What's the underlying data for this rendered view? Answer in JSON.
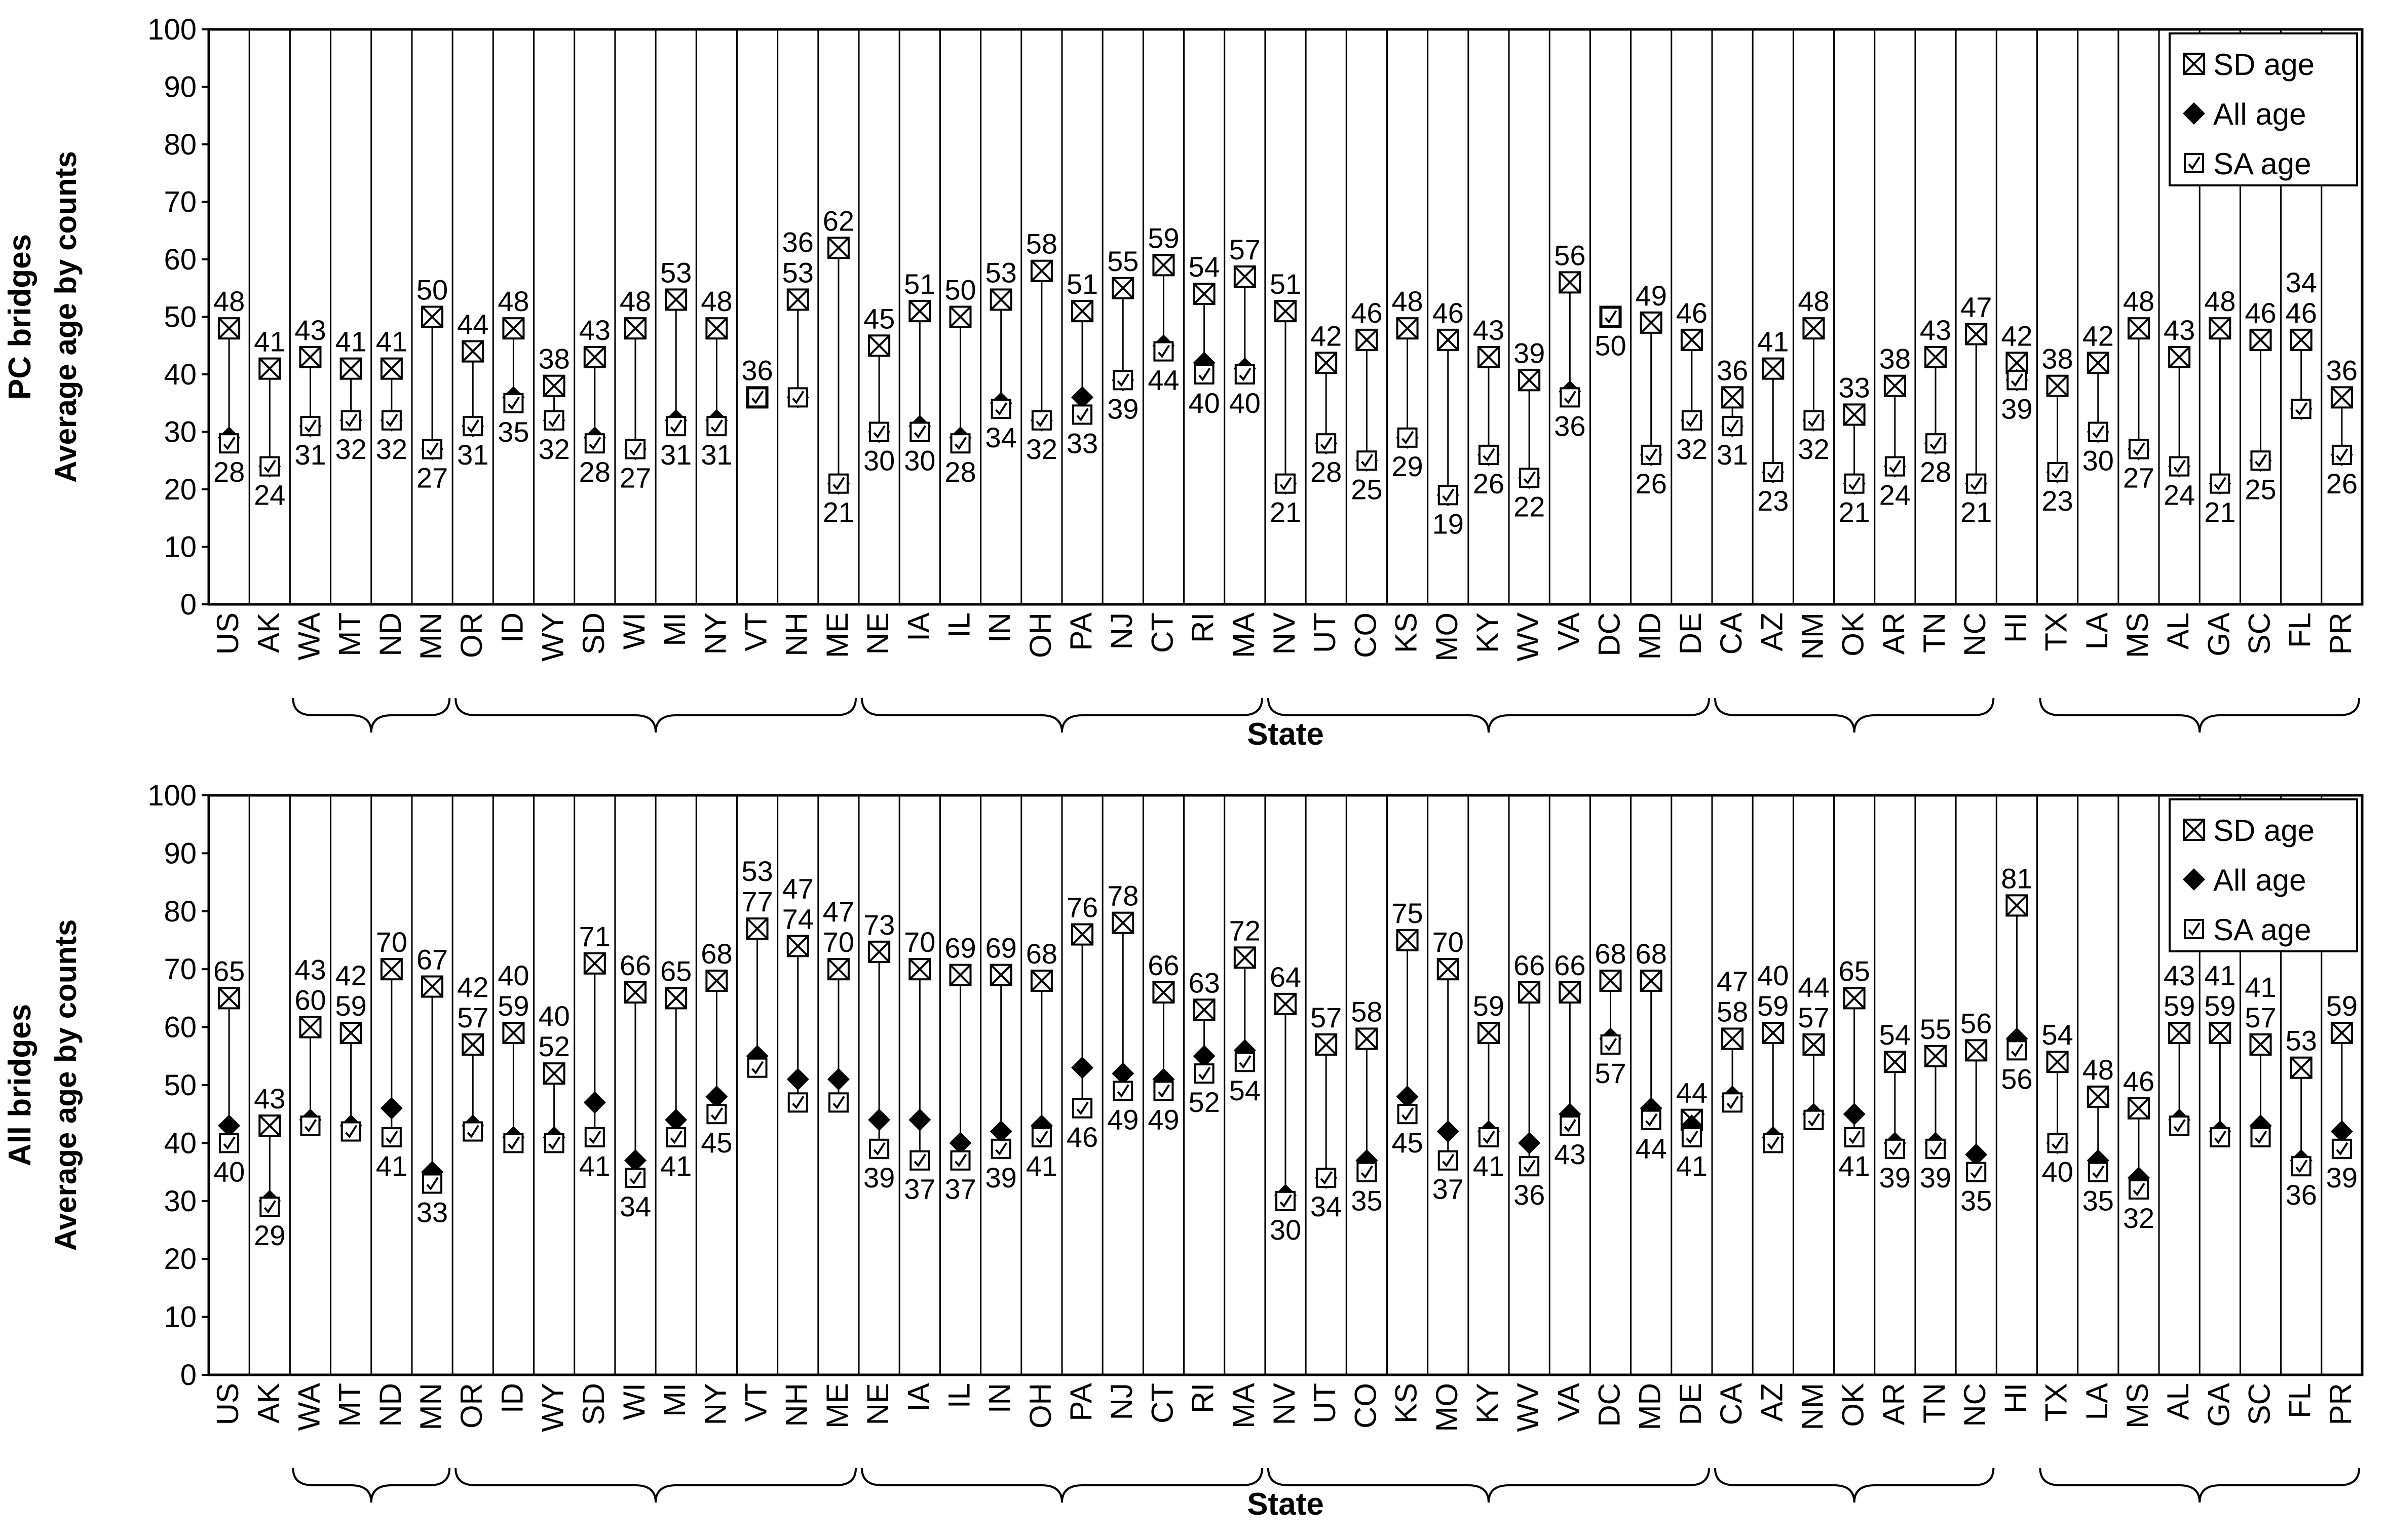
{
  "legend": {
    "sd_label": "SD age",
    "all_label": "All age",
    "sa_label": "SA age"
  },
  "chart_data": [
    {
      "type": "scatter",
      "title": "",
      "panel_label": "PC bridges",
      "ylabel": "Average age by counts",
      "xlabel": "State",
      "ylim": [
        0,
        100
      ],
      "yticks": [
        0,
        10,
        20,
        30,
        40,
        50,
        60,
        70,
        80,
        90,
        100
      ],
      "legend_position": "top-right",
      "categories": [
        "US",
        "AK",
        "WA",
        "MT",
        "ND",
        "MN",
        "OR",
        "ID",
        "WY",
        "SD",
        "WI",
        "MI",
        "NY",
        "VT",
        "NH",
        "ME",
        "NE",
        "IA",
        "IL",
        "IN",
        "OH",
        "PA",
        "NJ",
        "CT",
        "RI",
        "MA",
        "NV",
        "UT",
        "CO",
        "KS",
        "MO",
        "KY",
        "WV",
        "VA",
        "DC",
        "MD",
        "DE",
        "CA",
        "AZ",
        "NM",
        "OK",
        "AR",
        "TN",
        "NC",
        "HI",
        "TX",
        "LA",
        "MS",
        "AL",
        "GA",
        "SC",
        "FL",
        "PR"
      ],
      "series": [
        {
          "name": "SD age",
          "values": [
            48,
            41,
            43,
            41,
            41,
            50,
            44,
            48,
            38,
            43,
            48,
            53,
            48,
            36,
            53,
            62,
            45,
            51,
            50,
            53,
            58,
            51,
            55,
            59,
            54,
            57,
            51,
            42,
            46,
            48,
            46,
            43,
            39,
            56,
            50,
            49,
            46,
            36,
            41,
            48,
            33,
            38,
            43,
            47,
            42,
            38,
            42,
            48,
            43,
            48,
            46,
            46,
            36
          ]
        },
        {
          "name": "All age",
          "values": [
            29,
            24,
            31,
            32,
            32,
            27,
            31,
            36,
            32,
            29,
            27,
            32,
            32,
            36,
            36,
            21,
            30,
            31,
            29,
            35,
            32,
            36,
            39,
            45,
            42,
            41,
            21,
            28,
            25,
            29,
            19,
            26,
            22,
            37,
            50,
            26,
            32,
            31,
            23,
            32,
            21,
            24,
            28,
            21,
            39,
            23,
            30,
            27,
            24,
            21,
            25,
            34,
            26
          ]
        },
        {
          "name": "SA age",
          "values": [
            28,
            24,
            31,
            32,
            32,
            27,
            31,
            35,
            32,
            28,
            27,
            31,
            31,
            36,
            36,
            21,
            30,
            30,
            28,
            34,
            32,
            33,
            39,
            44,
            40,
            40,
            21,
            28,
            25,
            29,
            19,
            26,
            22,
            36,
            50,
            26,
            32,
            31,
            23,
            32,
            21,
            24,
            28,
            21,
            39,
            23,
            30,
            27,
            24,
            21,
            25,
            34,
            26
          ]
        }
      ],
      "point_labels": {
        "upper": [
          48,
          41,
          43,
          41,
          41,
          50,
          44,
          48,
          38,
          43,
          48,
          53,
          48,
          "",
          53,
          62,
          45,
          51,
          50,
          53,
          58,
          51,
          55,
          59,
          54,
          57,
          51,
          42,
          46,
          48,
          46,
          43,
          39,
          56,
          "",
          49,
          46,
          36,
          41,
          48,
          33,
          38,
          43,
          47,
          42,
          38,
          42,
          48,
          43,
          48,
          46,
          46,
          36
        ],
        "lower": [
          28,
          24,
          31,
          32,
          32,
          27,
          31,
          35,
          32,
          28,
          27,
          31,
          31,
          36,
          36,
          21,
          30,
          30,
          28,
          34,
          32,
          33,
          39,
          44,
          40,
          40,
          21,
          28,
          25,
          29,
          19,
          26,
          22,
          36,
          50,
          26,
          32,
          31,
          23,
          32,
          21,
          24,
          28,
          21,
          39,
          23,
          30,
          27,
          24,
          21,
          25,
          34,
          26
        ]
      },
      "label_position": [
        "below",
        "below",
        "below",
        "below",
        "below",
        "below",
        "below",
        "below",
        "below",
        "below",
        "below",
        "below",
        "below",
        "above",
        "above",
        "below",
        "below",
        "below",
        "below",
        "below",
        "below",
        "below",
        "below",
        "below",
        "below",
        "below",
        "below",
        "below",
        "below",
        "below",
        "below",
        "below",
        "below",
        "below",
        "below",
        "below",
        "below",
        "below",
        "below",
        "below",
        "below",
        "below",
        "below",
        "below",
        "below",
        "below",
        "below",
        "below",
        "below",
        "below",
        "below",
        "above",
        "below"
      ],
      "groups": [
        [
          2,
          5
        ],
        [
          6,
          15
        ],
        [
          16,
          25
        ],
        [
          26,
          36
        ],
        [
          37,
          43
        ],
        [
          45,
          52
        ]
      ]
    },
    {
      "type": "scatter",
      "title": "",
      "panel_label": "All bridges",
      "ylabel": "Average age by counts",
      "xlabel": "State",
      "ylim": [
        0,
        100
      ],
      "yticks": [
        0,
        10,
        20,
        30,
        40,
        50,
        60,
        70,
        80,
        90,
        100
      ],
      "legend_position": "top-right",
      "categories": [
        "US",
        "AK",
        "WA",
        "MT",
        "ND",
        "MN",
        "OR",
        "ID",
        "WY",
        "SD",
        "WI",
        "MI",
        "NY",
        "VT",
        "NH",
        "ME",
        "NE",
        "IA",
        "IL",
        "IN",
        "OH",
        "PA",
        "NJ",
        "CT",
        "RI",
        "MA",
        "NV",
        "UT",
        "CO",
        "KS",
        "MO",
        "KY",
        "WV",
        "VA",
        "DC",
        "MD",
        "DE",
        "CA",
        "AZ",
        "NM",
        "OK",
        "AR",
        "TN",
        "NC",
        "HI",
        "TX",
        "LA",
        "MS",
        "AL",
        "GA",
        "SC",
        "FL",
        "PR"
      ],
      "series": [
        {
          "name": "SD age",
          "values": [
            65,
            43,
            60,
            59,
            70,
            67,
            57,
            59,
            52,
            71,
            66,
            65,
            68,
            77,
            74,
            70,
            73,
            70,
            69,
            69,
            68,
            76,
            78,
            66,
            63,
            72,
            64,
            57,
            58,
            75,
            70,
            59,
            66,
            66,
            68,
            68,
            44,
            58,
            59,
            57,
            65,
            54,
            55,
            56,
            81,
            54,
            48,
            46,
            59,
            59,
            57,
            53,
            59
          ]
        },
        {
          "name": "All age",
          "values": [
            43,
            30,
            44,
            43,
            46,
            35,
            43,
            41,
            41,
            47,
            37,
            44,
            48,
            55,
            51,
            51,
            44,
            44,
            40,
            42,
            43,
            53,
            52,
            51,
            55,
            56,
            31,
            34,
            37,
            48,
            42,
            42,
            40,
            45,
            58,
            46,
            43,
            48,
            41,
            45,
            45,
            40,
            40,
            38,
            58,
            40,
            37,
            34,
            44,
            42,
            43,
            37,
            42
          ]
        },
        {
          "name": "SA age",
          "values": [
            40,
            29,
            43,
            42,
            41,
            33,
            42,
            40,
            40,
            41,
            34,
            41,
            45,
            53,
            47,
            47,
            39,
            37,
            37,
            39,
            41,
            46,
            49,
            49,
            52,
            54,
            30,
            34,
            35,
            45,
            37,
            41,
            36,
            43,
            57,
            44,
            41,
            47,
            40,
            44,
            41,
            39,
            39,
            35,
            56,
            40,
            35,
            32,
            43,
            41,
            41,
            36,
            39
          ]
        }
      ],
      "point_labels": {
        "upper": [
          65,
          43,
          60,
          59,
          70,
          67,
          57,
          59,
          52,
          71,
          66,
          65,
          68,
          77,
          74,
          70,
          73,
          70,
          69,
          69,
          68,
          76,
          78,
          66,
          63,
          72,
          64,
          57,
          58,
          75,
          70,
          59,
          66,
          66,
          68,
          68,
          44,
          58,
          59,
          57,
          65,
          54,
          55,
          56,
          81,
          54,
          48,
          46,
          59,
          59,
          57,
          53,
          59
        ],
        "lower": [
          40,
          29,
          43,
          42,
          41,
          33,
          42,
          40,
          40,
          41,
          34,
          41,
          45,
          53,
          47,
          47,
          39,
          37,
          37,
          39,
          41,
          46,
          49,
          49,
          52,
          54,
          30,
          34,
          35,
          45,
          37,
          41,
          36,
          43,
          57,
          44,
          41,
          47,
          40,
          44,
          41,
          39,
          39,
          35,
          56,
          40,
          35,
          32,
          43,
          41,
          41,
          36,
          39
        ]
      },
      "label_position": [
        "below",
        "below",
        "above",
        "above",
        "below",
        "below",
        "above",
        "above",
        "above",
        "below",
        "below",
        "below",
        "below",
        "above",
        "above",
        "above",
        "below",
        "below",
        "below",
        "below",
        "below",
        "below",
        "below",
        "below",
        "below",
        "below",
        "below",
        "below",
        "below",
        "below",
        "below",
        "below",
        "below",
        "below",
        "below",
        "below",
        "below",
        "above",
        "above",
        "above",
        "below",
        "below",
        "below",
        "below",
        "below",
        "below",
        "below",
        "below",
        "above",
        "above",
        "above",
        "below",
        "below"
      ],
      "groups": [
        [
          2,
          5
        ],
        [
          6,
          15
        ],
        [
          16,
          25
        ],
        [
          26,
          36
        ],
        [
          37,
          43
        ],
        [
          45,
          52
        ]
      ]
    }
  ]
}
